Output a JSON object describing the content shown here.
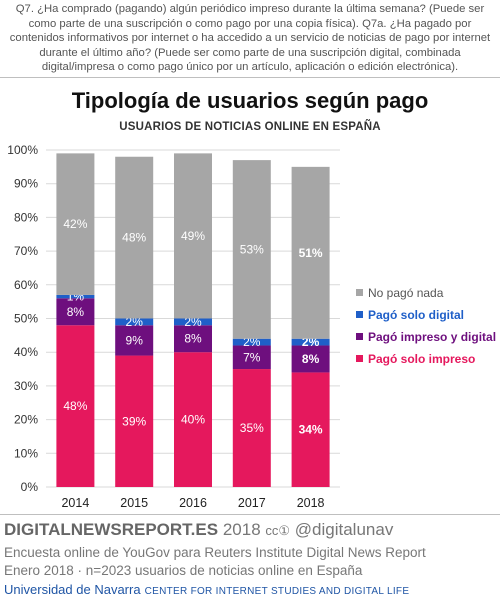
{
  "question_text": "Q7. ¿Ha comprado (pagando) algún periódico impreso durante la última semana? (Puede ser como parte de una suscripción o como pago por una copia física). Q7a. ¿Ha pagado por contenidos informativos por internet o ha accedido a un servicio de noticias de pago por internet durante el último año? (Puede ser como parte de una suscripción digital, combinada digital/impresa o como pago único por un artículo, aplicación o edición electrónica).",
  "chart_data": {
    "type": "bar",
    "stacked": true,
    "title": "Tipología de usuarios según pago",
    "subtitle": "USUARIOS DE NOTICIAS ONLINE EN ESPAÑA",
    "categories": [
      "2014",
      "2015",
      "2016",
      "2017",
      "2018"
    ],
    "ylim": [
      0,
      100
    ],
    "yticks": [
      0,
      10,
      20,
      30,
      40,
      50,
      60,
      70,
      80,
      90,
      100
    ],
    "ytick_suffix": "%",
    "grid": true,
    "legend_position": "right",
    "highlight_category": "2018",
    "series": [
      {
        "name": "Pagó solo impreso",
        "color": "#e5185d",
        "label_color": "#ffffff",
        "values": [
          48,
          39,
          40,
          35,
          34
        ]
      },
      {
        "name": "Pagó impreso y digital",
        "color": "#6e0f7e",
        "label_color": "#ffffff",
        "values": [
          8,
          9,
          8,
          7,
          8
        ]
      },
      {
        "name": "Pagó solo digital",
        "color": "#1f5fc8",
        "label_color": "#ffffff",
        "values": [
          1,
          2,
          2,
          2,
          2
        ]
      },
      {
        "name": "No pagó nada",
        "color": "#a6a6a6",
        "label_color": "#ffffff",
        "values": [
          42,
          48,
          49,
          53,
          51
        ]
      }
    ],
    "legend_text_colors": {
      "No pagó nada": "#555555",
      "Pagó solo digital": "#1f5fc8",
      "Pagó impreso y digital": "#6e0f7e",
      "Pagó solo impreso": "#e5185d"
    }
  },
  "footer": {
    "brand": "DIGITALNEWSREPORT.ES",
    "year": "2018",
    "cc": "cc①",
    "handle": "@digitalunav",
    "line1": "Encuesta online de YouGov para Reuters Institute Digital News Report",
    "line2": "Enero 2018 · n=2023 usuarios de noticias online en España",
    "university": "Universidad de Navarra",
    "center": "CENTER FOR INTERNET STUDIES AND DIGITAL LIFE"
  }
}
